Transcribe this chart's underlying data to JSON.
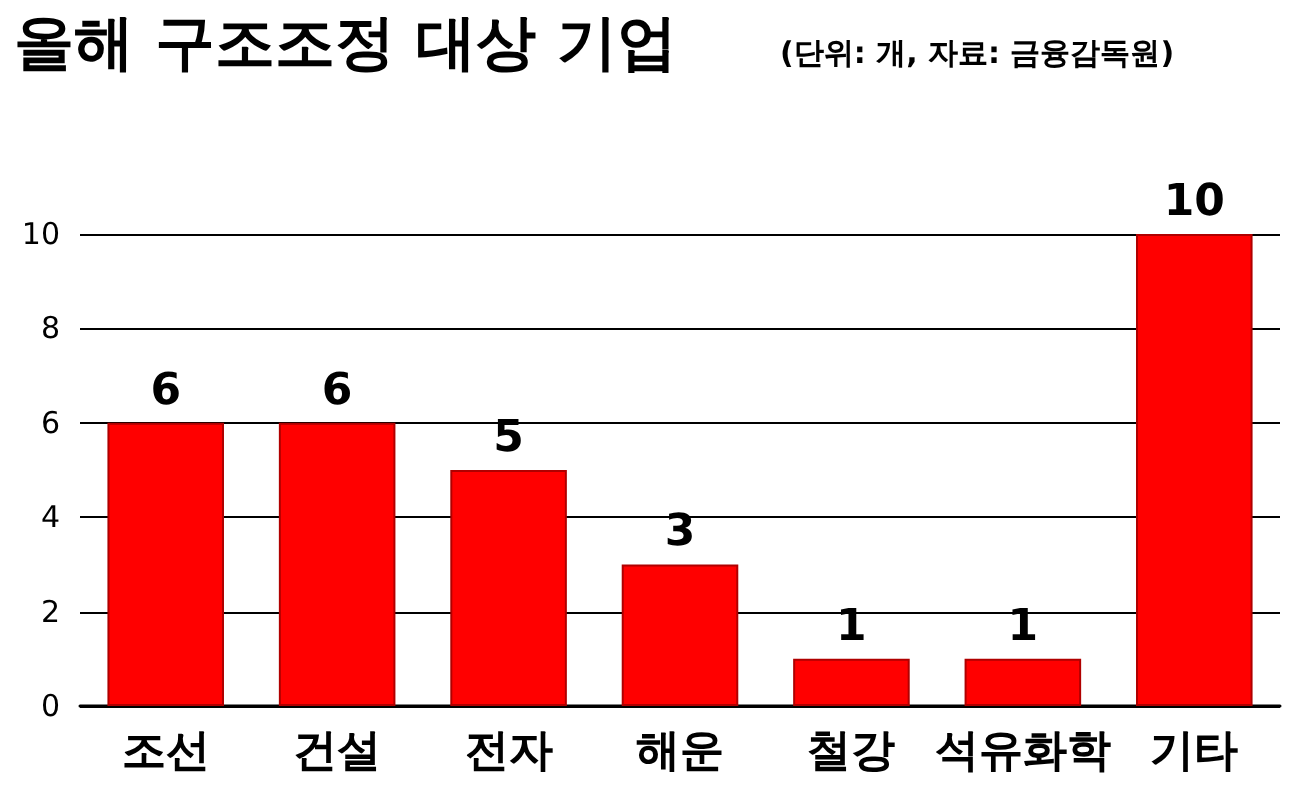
{
  "chart_data": {
    "type": "bar",
    "title": "올해 구조조정 대상 기업",
    "subtitle": "(단위: 개, 자료: 금융감독원)",
    "categories": [
      "조선",
      "건설",
      "전자",
      "해운",
      "철강",
      "석유화학",
      "기타"
    ],
    "values": [
      6,
      6,
      5,
      3,
      1,
      1,
      10
    ],
    "color": "#ff0000",
    "ylim": [
      0,
      10
    ],
    "yticks": [
      0,
      2,
      4,
      6,
      8,
      10
    ],
    "grid": "y",
    "data_labels": true
  }
}
